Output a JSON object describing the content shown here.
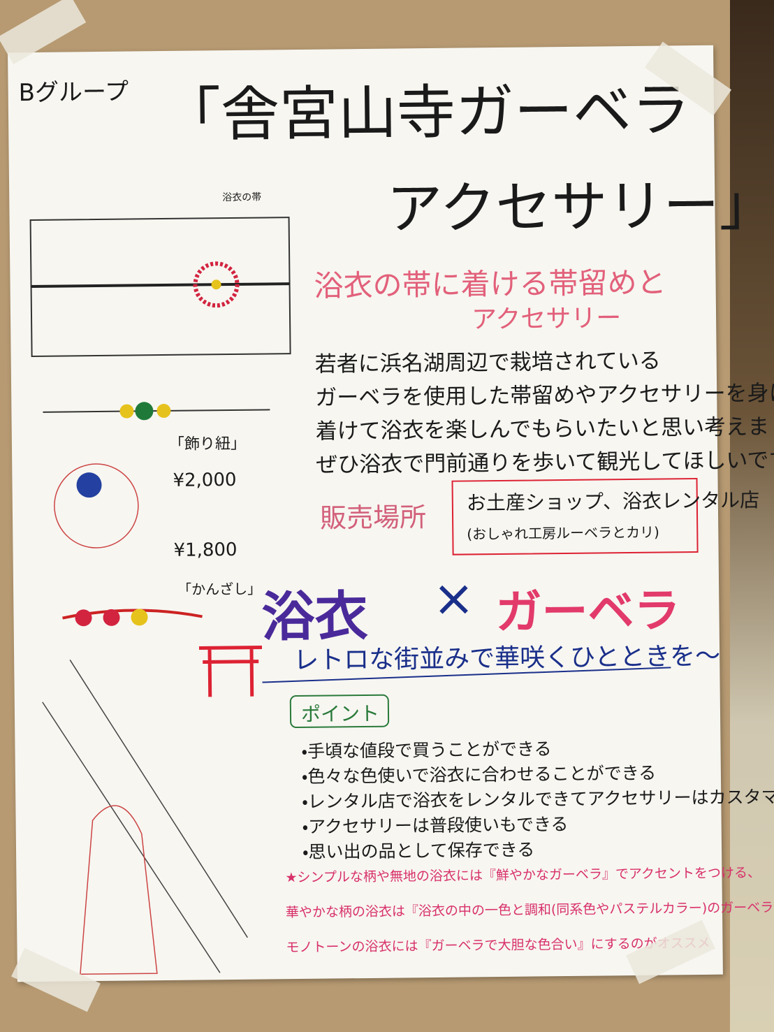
{
  "header": {
    "group": "Bグループ",
    "title_line1": "「舎宮山寺ガーベラ",
    "title_line2": "アクセサリー」"
  },
  "sketches": {
    "obi_label": "浴衣の帯",
    "cord_label": "「飾り紐」",
    "cord_price": "¥2,000",
    "kanzashi_price": "¥1,800",
    "kanzashi_label": "「かんざし」"
  },
  "subtitle": {
    "line1": "浴衣の帯に着ける帯留めと",
    "line2": "アクセサリー"
  },
  "description": [
    "若者に浜名湖周辺で栽培されている",
    "ガーベラを使用した帯留めやアクセサリーを身に",
    "着けて浴衣を楽しんでもらいたいと思い考えました。",
    "ぜひ浴衣で門前通りを歩いて観光してほしいです。"
  ],
  "sales": {
    "label": "販売場所",
    "place": "お土産ショップ、浴衣レンタル店",
    "note": "(おしゃれ工房ルーベラとカリ)"
  },
  "slogan": {
    "left": "浴衣",
    "cross": "×",
    "right": "ガーベラ",
    "tagline": "レトロな街並みで華咲くひとときを〜"
  },
  "points": {
    "heading": "ポイント",
    "items": [
      "・手頃な値段で買うことができる",
      "・色々な色使いで浴衣に合わせることができる",
      "・レンタル店で浴衣をレンタルできてアクセサリーはカスタマイズできる",
      "・アクセサリーは普段使いもできる",
      "・思い出の品として保存できる"
    ]
  },
  "recommendation": [
    "★シンプルな柄や無地の浴衣には『鮮やかなガーベラ』でアクセントをつける、",
    "華やかな柄の浴衣は『浴衣の中の一色と調和(同系色やパステルカラー)のガーベラで全体をまとめ、",
    "モノトーンの浴衣には『ガーベラで大胆な色合い』にするのがオススメ"
  ]
}
